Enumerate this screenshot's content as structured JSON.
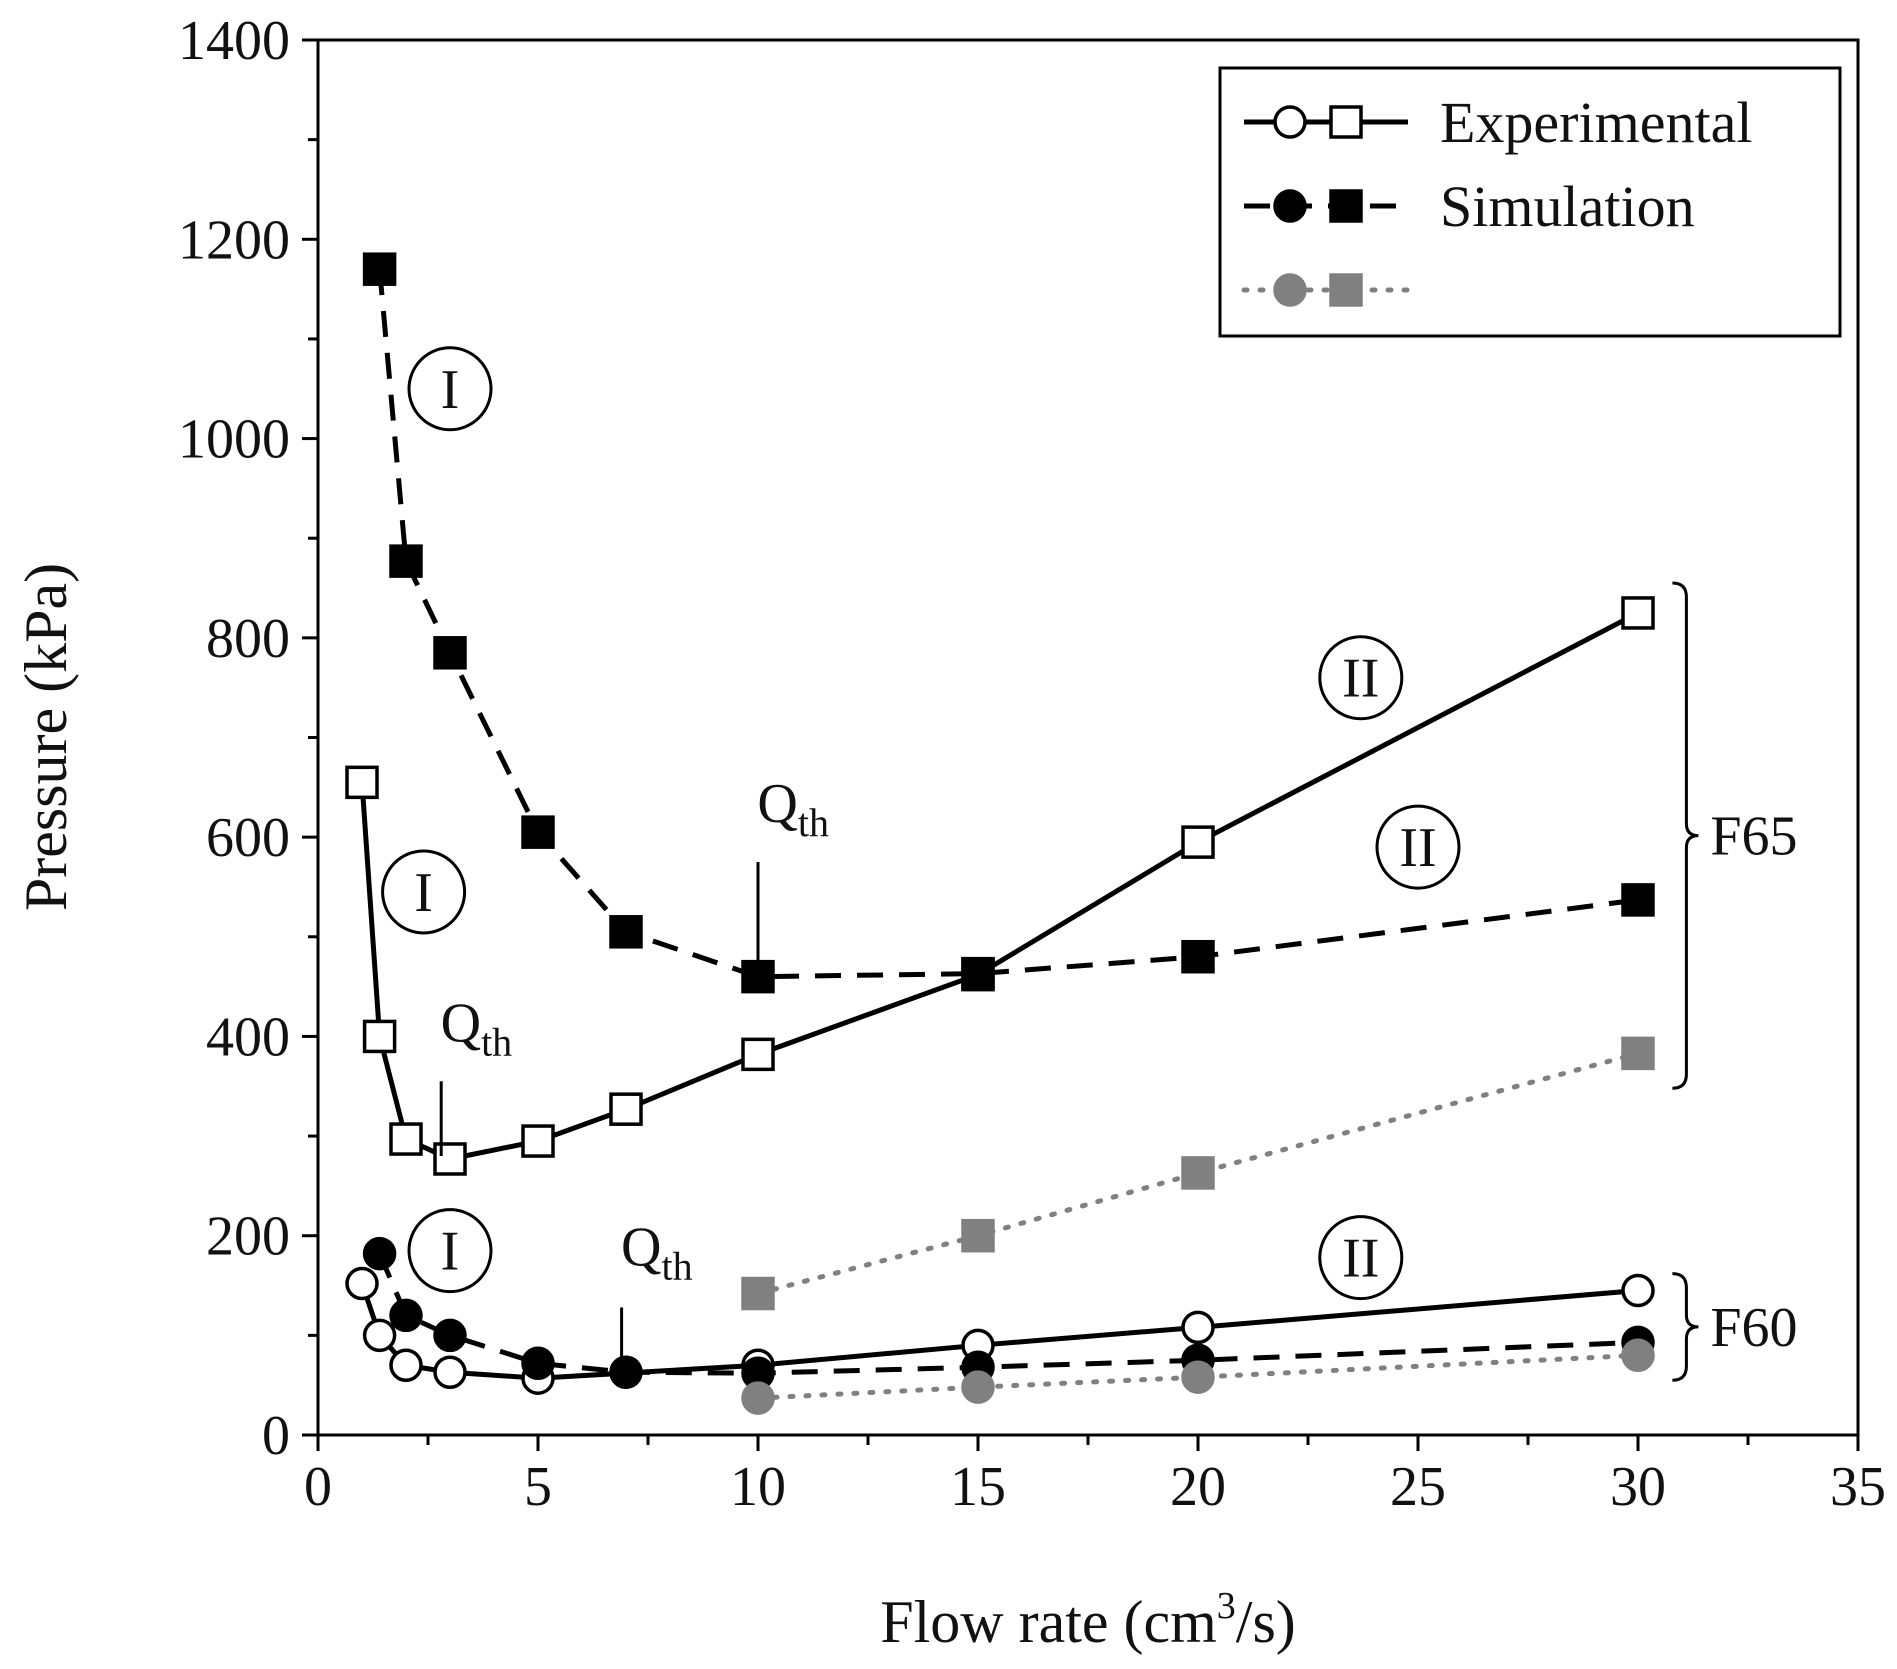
{
  "chart_data": {
    "type": "scatter",
    "title": "",
    "xlabel": "Flow rate (cm",
    "xlabel_sup": "3",
    "xlabel_tail": "/s)",
    "ylabel": "Pressure (kPa)",
    "xlim": [
      0,
      35
    ],
    "ylim": [
      0,
      1400
    ],
    "xticks": [
      0,
      5,
      10,
      15,
      20,
      25,
      30,
      35
    ],
    "yticks": [
      0,
      200,
      400,
      600,
      800,
      1000,
      1200,
      1400
    ],
    "grid": false,
    "legend": {
      "placement": "top-right",
      "entries": [
        {
          "label": "Experimental",
          "style": "solid",
          "color": "#000000",
          "fill": "#ffffff"
        },
        {
          "label": "Simulation",
          "style": "dashed",
          "color": "#000000",
          "fill": "#000000"
        },
        {
          "label": "",
          "style": "dotted",
          "color": "#808080",
          "fill": "#808080"
        }
      ]
    },
    "series": [
      {
        "name": "Experimental F65",
        "group": "F65",
        "marker": "square",
        "style": "solid",
        "color": "#000000",
        "fill": "#ffffff",
        "x": [
          1,
          1.4,
          2,
          3,
          5,
          7,
          10,
          15,
          20,
          30
        ],
        "y": [
          655,
          400,
          297,
          277,
          295,
          327,
          382,
          462,
          595,
          825
        ]
      },
      {
        "name": "Simulation F65",
        "group": "F65",
        "marker": "square",
        "style": "dashed",
        "color": "#000000",
        "fill": "#000000",
        "x": [
          1.4,
          2,
          3,
          5,
          7,
          10,
          15,
          20,
          30
        ],
        "y": [
          1170,
          877,
          785,
          605,
          505,
          460,
          463,
          480,
          537
        ]
      },
      {
        "name": "Simulation F65 (gray)",
        "group": "F65",
        "marker": "square",
        "style": "dotted",
        "color": "#808080",
        "fill": "#808080",
        "x": [
          10,
          15,
          20,
          30
        ],
        "y": [
          142,
          200,
          263,
          383
        ]
      },
      {
        "name": "Experimental F60",
        "group": "F60",
        "marker": "circle",
        "style": "solid",
        "color": "#000000",
        "fill": "#ffffff",
        "x": [
          1,
          1.4,
          2,
          3,
          5,
          10,
          15,
          20,
          30
        ],
        "y": [
          152,
          100,
          70,
          63,
          57,
          70,
          90,
          108,
          145
        ]
      },
      {
        "name": "Simulation F60",
        "group": "F60",
        "marker": "circle",
        "style": "dashed",
        "color": "#000000",
        "fill": "#000000",
        "x": [
          1.4,
          2,
          3,
          5,
          7,
          10,
          15,
          20,
          30
        ],
        "y": [
          182,
          120,
          100,
          72,
          63,
          62,
          68,
          75,
          93
        ]
      },
      {
        "name": "Simulation F60 (gray)",
        "group": "F60",
        "marker": "circle",
        "style": "dotted",
        "color": "#808080",
        "fill": "#808080",
        "x": [
          10,
          15,
          20,
          30
        ],
        "y": [
          37,
          48,
          58,
          80
        ]
      }
    ],
    "annotations": [
      {
        "text": "I",
        "circled": true,
        "x": 3,
        "y": 1050
      },
      {
        "text": "I",
        "circled": true,
        "x": 2.4,
        "y": 545
      },
      {
        "text": "I",
        "circled": true,
        "x": 3,
        "y": 185
      },
      {
        "text": "II",
        "circled": true,
        "x": 23.7,
        "y": 760
      },
      {
        "text": "II",
        "circled": true,
        "x": 25,
        "y": 590
      },
      {
        "text": "II",
        "circled": true,
        "x": 23.7,
        "y": 178
      },
      {
        "text": "Q",
        "sub": "th",
        "x": 10.8,
        "y": 615,
        "line_x": 10,
        "line_y1": 575,
        "line_y2": 462
      },
      {
        "text": "Q",
        "sub": "th",
        "x": 3.6,
        "y": 395,
        "line_x": 2.8,
        "line_y1": 355,
        "line_y2": 280
      },
      {
        "text": "Q",
        "sub": "th",
        "x": 7.7,
        "y": 170,
        "line_x": 6.9,
        "line_y1": 128,
        "line_y2": 68
      }
    ],
    "brackets": [
      {
        "label": "F65",
        "x": 31.1,
        "y_min": 348,
        "y_max": 855
      },
      {
        "label": "F60",
        "x": 31.1,
        "y_min": 55,
        "y_max": 162
      }
    ]
  }
}
